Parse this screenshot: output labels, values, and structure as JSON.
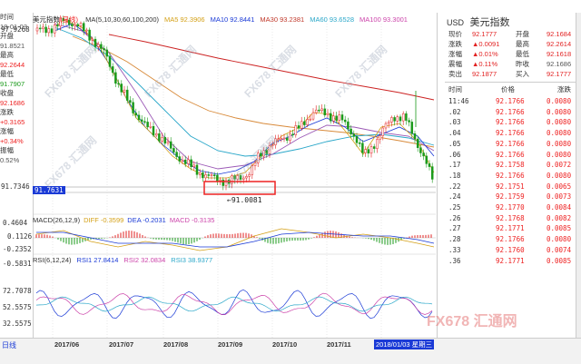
{
  "left_panel": {
    "time_label": "时间",
    "time_value": "18-01-03",
    "open_label": "开盘",
    "open_value": "91.8521",
    "high_label": "最高",
    "high_value": "92.2644",
    "low_label": "最低",
    "low_value": "91.7907",
    "close_label": "收盘",
    "close_value": "92.1686",
    "change_label": "涨跌",
    "change_value": "+0.3165",
    "pct_label": "涨幅",
    "pct_value": "+0.34%",
    "amp_label": "振幅",
    "amp_value": "0.52%"
  },
  "main_chart": {
    "title": "美元指数",
    "period": "(日线)",
    "ma_items": [
      {
        "text": "MA(5,10,30,60,100,200)",
        "color": "#333333"
      },
      {
        "text": "MA5 92.3906",
        "color": "#d4a017"
      },
      {
        "text": "MA10 92.8441",
        "color": "#1a3ad6"
      },
      {
        "text": "MA30 93.2381",
        "color": "#c0392b"
      },
      {
        "text": "MA60 93.6528",
        "color": "#2aa7c9"
      },
      {
        "text": "MA100 93.3001",
        "color": "#cc44aa"
      }
    ],
    "y_top": "97.9268",
    "y_mid": "91.7346",
    "current_price_tag": "91.7631",
    "low_annotation": "←91.0081",
    "colors": {
      "up": "#e22222",
      "down": "#1a9a1a",
      "red_line": "#cc2222",
      "blue_line": "#2aa7c9",
      "purple_line": "#9b59b6"
    }
  },
  "macd_panel": {
    "items": [
      {
        "text": "MACD(26,12,9)",
        "color": "#333333"
      },
      {
        "text": "DIFF -0.3599",
        "color": "#d4a017"
      },
      {
        "text": "DEA -0.2031",
        "color": "#1a3ad6"
      },
      {
        "text": "MACD -0.3135",
        "color": "#cc44aa"
      }
    ],
    "y_ticks": [
      "0.4604",
      "0.1126",
      "-0.2352",
      "-0.5831"
    ]
  },
  "rsi_panel": {
    "items": [
      {
        "text": "RSI(6,12,24)",
        "color": "#333333"
      },
      {
        "text": "RSI1 27.8414",
        "color": "#1a3ad6"
      },
      {
        "text": "RSI2 32.0834",
        "color": "#cc44aa"
      },
      {
        "text": "RSI3 38.9377",
        "color": "#2aa7c9"
      }
    ],
    "y_ticks": [
      "72.7078",
      "52.5575",
      "32.5575"
    ]
  },
  "x_axis": {
    "ticks": [
      "2017/06",
      "2017/07",
      "2017/08",
      "2017/09",
      "2017/10",
      "2017/11"
    ],
    "cursor_date": "2018/01/03 星期三",
    "period_button": "日线"
  },
  "right_panel": {
    "symbol": "USD",
    "name": "美元指数",
    "quote_rows": [
      {
        "l1": "现价",
        "v1": "92.1777",
        "c1": "#e22222",
        "l2": "开盘",
        "v2": "92.1684",
        "c2": "#e22222"
      },
      {
        "l1": "涨跌",
        "v1": "▲0.0091",
        "c1": "#e22222",
        "l2": "最高",
        "v2": "92.2614",
        "c2": "#e22222"
      },
      {
        "l1": "涨幅",
        "v1": "▲0.01%",
        "c1": "#e22222",
        "l2": "最低",
        "v2": "92.1618",
        "c2": "#e22222"
      },
      {
        "l1": "震幅",
        "v1": "▲0.11%",
        "c1": "#e22222",
        "l2": "昨收",
        "v2": "92.1686",
        "c2": "#555555"
      },
      {
        "l1": "卖出",
        "v1": "92.1877",
        "c1": "#e22222",
        "l2": "买入",
        "v2": "92.1777",
        "c2": "#e22222"
      }
    ],
    "tick_headers": [
      "时间",
      "价格",
      "涨跌"
    ],
    "tick_rows": [
      {
        "time": "11:46",
        "price": "92.1766",
        "chg": "0.0080"
      },
      {
        "time": ".02",
        "price": "92.1766",
        "chg": "0.0080"
      },
      {
        "time": ".03",
        "price": "92.1766",
        "chg": "0.0080"
      },
      {
        "time": ".04",
        "price": "92.1766",
        "chg": "0.0080"
      },
      {
        "time": ".05",
        "price": "92.1766",
        "chg": "0.0080"
      },
      {
        "time": ".06",
        "price": "92.1766",
        "chg": "0.0080"
      },
      {
        "time": ".17",
        "price": "92.1758",
        "chg": "0.0072"
      },
      {
        "time": ".18",
        "price": "92.1766",
        "chg": "0.0080"
      },
      {
        "time": ".22",
        "price": "92.1751",
        "chg": "0.0065"
      },
      {
        "time": ".24",
        "price": "92.1759",
        "chg": "0.0073"
      },
      {
        "time": ".25",
        "price": "92.1770",
        "chg": "0.0084"
      },
      {
        "time": ".26",
        "price": "92.1768",
        "chg": "0.0082"
      },
      {
        "time": ".27",
        "price": "92.1771",
        "chg": "0.0085"
      },
      {
        "time": ".28",
        "price": "92.1766",
        "chg": "0.0080"
      },
      {
        "time": ".33",
        "price": "92.1760",
        "chg": "0.0074"
      },
      {
        "time": ".36",
        "price": "92.1771",
        "chg": "0.0085"
      }
    ]
  },
  "watermark_text": "FX678 汇通网"
}
